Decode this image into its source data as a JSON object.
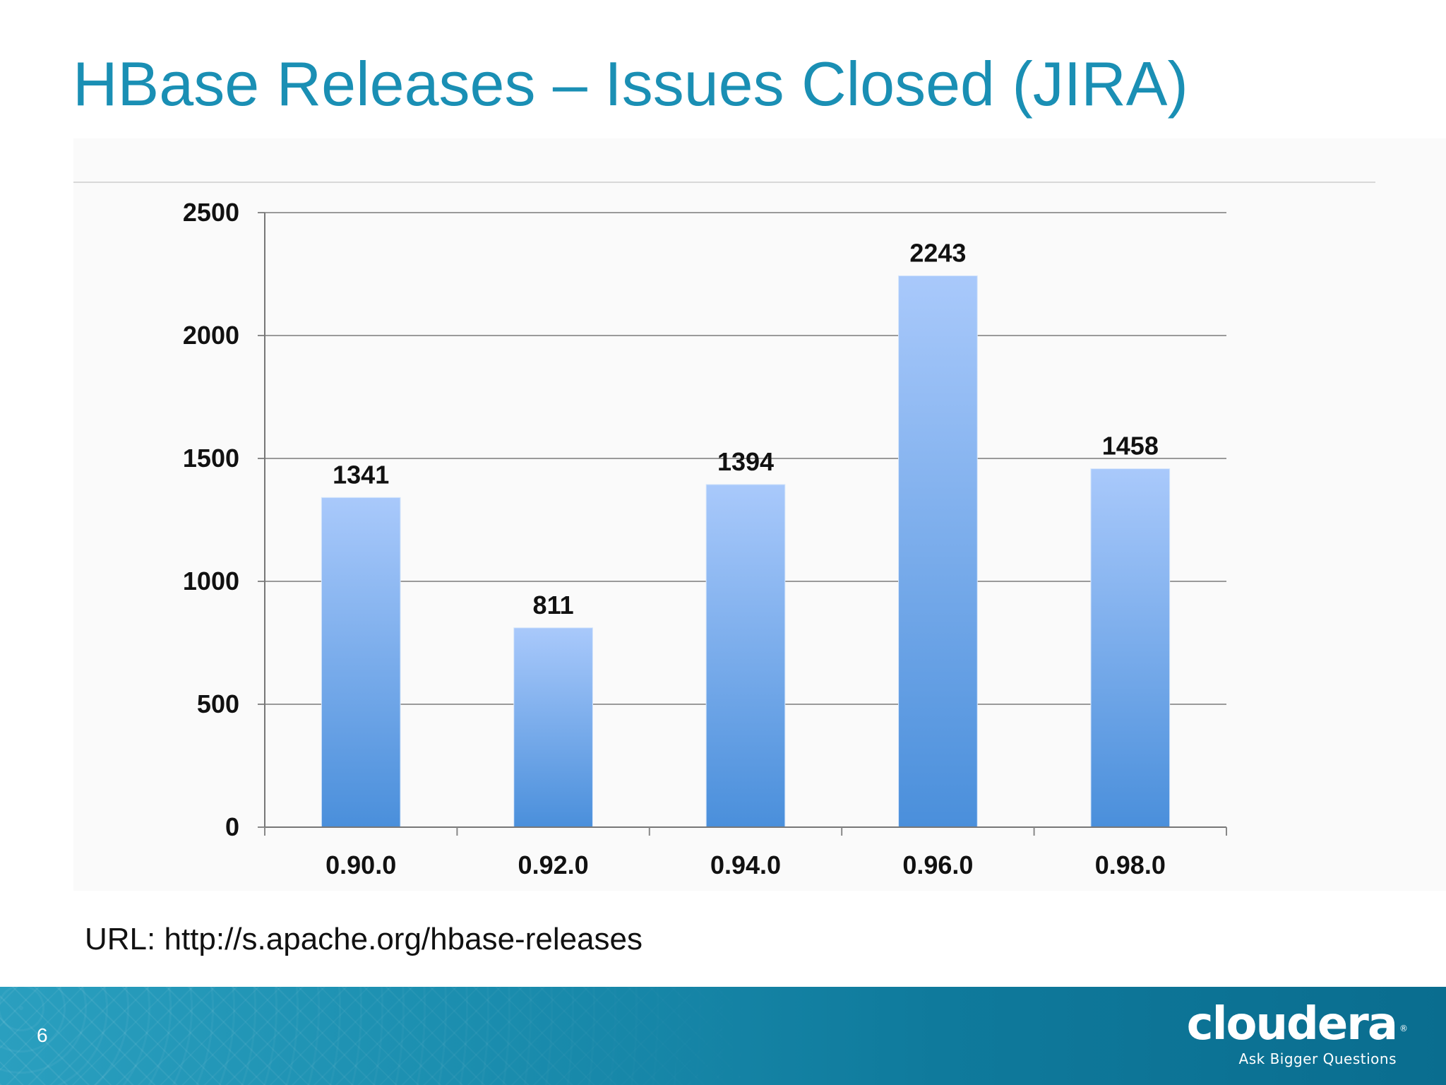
{
  "slide": {
    "title": "HBase Releases – Issues Closed (JIRA)",
    "url_text": "URL: http://s.apache.org/hbase-releases",
    "page_number": "6"
  },
  "brand": {
    "name": "cloudera",
    "registered_mark": "®",
    "tagline": "Ask Bigger Questions",
    "footer_color_start": "#2a9fbf",
    "footer_color_end": "#0a6d8f"
  },
  "colors": {
    "title": "#1a8fb4",
    "bar_top": "#a9c9fb",
    "bar_bottom": "#4a8fdb",
    "gridline": "#9a9a9a"
  },
  "chart_data": {
    "type": "bar",
    "categories": [
      "0.90.0",
      "0.92.0",
      "0.94.0",
      "0.96.0",
      "0.98.0"
    ],
    "values": [
      1341,
      811,
      1394,
      2243,
      1458
    ],
    "data_labels": [
      "1341",
      "811",
      "1394",
      "2243",
      "1458"
    ],
    "ylim": [
      0,
      2500
    ],
    "yticks": [
      0,
      500,
      1000,
      1500,
      2000,
      2500
    ],
    "grid": true,
    "legend": "none"
  }
}
